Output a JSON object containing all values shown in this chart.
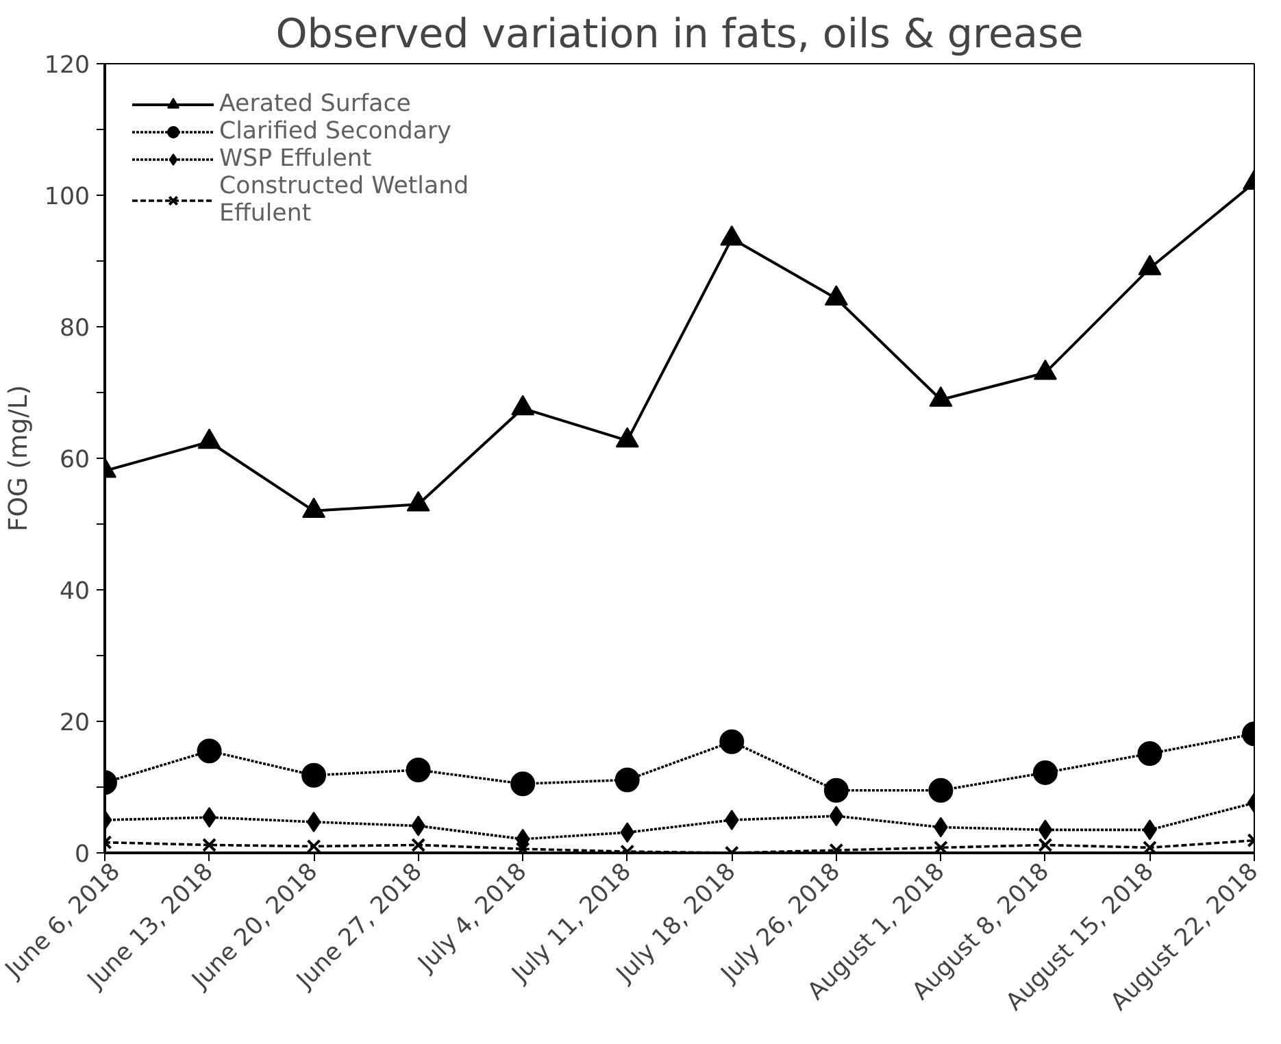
{
  "chart_data": {
    "type": "line",
    "title": "Observed variation in fats, oils & grease",
    "ylabel": "FOG (mg/L)",
    "categories": [
      "June 6, 2018",
      "June 13, 2018",
      "June 20, 2018",
      "June 27, 2018",
      "July 4, 2018",
      "July 11, 2018",
      "July 18, 2018",
      "July 26, 2018",
      "August 1, 2018",
      "August 8, 2018",
      "August 15, 2018",
      "August 22, 2018"
    ],
    "series": [
      {
        "name": "Aerated Surface",
        "color": "#000000",
        "marker": "triangle",
        "line_style": "solid",
        "values": [
          58.1,
          62.5,
          52,
          53,
          67.6,
          62.7,
          93.4,
          84.3,
          68.9,
          73,
          88.9,
          101.9
        ]
      },
      {
        "name": "Clarified Secondary",
        "color": "#000000",
        "marker": "circle",
        "line_style": "dotted",
        "values": [
          10.7,
          15.5,
          11.8,
          12.6,
          10.5,
          11.1,
          16.9,
          9.5,
          9.5,
          12.2,
          15.1,
          18.1
        ]
      },
      {
        "name": "WSP Effulent",
        "color": "#000000",
        "marker": "diamond",
        "line_style": "dotted",
        "values": [
          5,
          5.4,
          4.7,
          4.1,
          2.1,
          3.1,
          5,
          5.6,
          3.9,
          3.5,
          3.5,
          7.6
        ]
      },
      {
        "name": "Constructed Wetland Effulent",
        "color": "#000000",
        "marker": "cross",
        "line_style": "dashed",
        "values": [
          1.6,
          1.2,
          1,
          1.2,
          0.6,
          0.2,
          0,
          0.4,
          0.8,
          1.2,
          0.8,
          1.9
        ]
      }
    ],
    "ylim": [
      0,
      120
    ],
    "yticks": [
      0,
      {
        "value": 10,
        "label": null
      },
      20,
      {
        "value": 30,
        "label": null
      },
      40,
      {
        "value": 50,
        "label": null
      },
      60,
      {
        "value": 70,
        "label": null
      },
      80,
      {
        "value": 90,
        "label": null
      },
      100,
      {
        "value": 110,
        "label": null
      },
      120
    ],
    "grid": false,
    "legend": "top left"
  }
}
